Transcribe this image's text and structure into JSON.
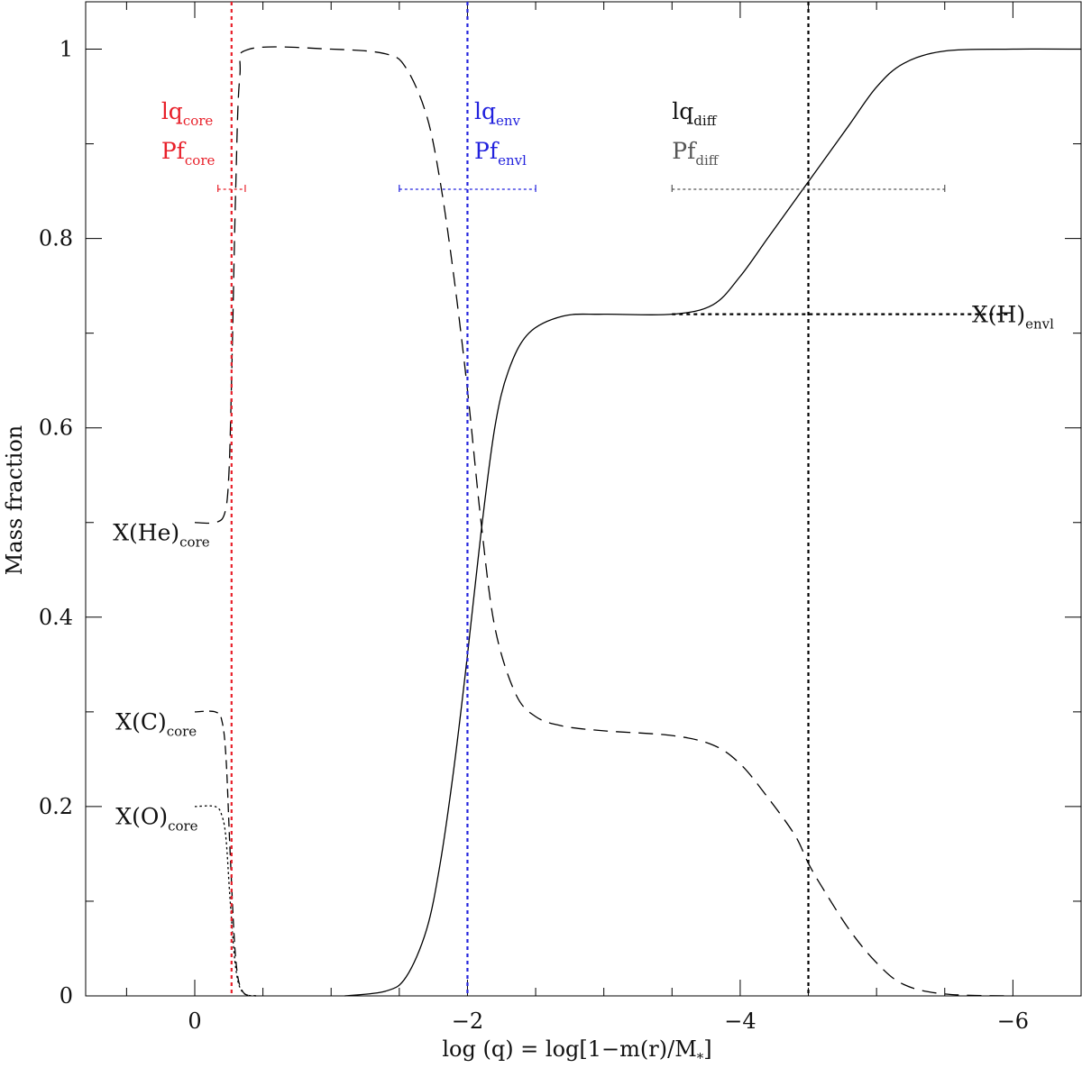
{
  "chart_data": {
    "type": "line",
    "title": "",
    "xlabel": "log (q) = log[1−m(r)/M",
    "xlabel_sub": "*",
    "xlabel_close": "]",
    "ylabel": "Mass fraction",
    "xlim": [
      0.8,
      -6.5
    ],
    "ylim": [
      0,
      1.05
    ],
    "x_reversed": true,
    "grid": false,
    "x_ticks": [
      {
        "value": 0,
        "label": "0"
      },
      {
        "value": -2,
        "label": "−2"
      },
      {
        "value": -4,
        "label": "−4"
      },
      {
        "value": -6,
        "label": "−6"
      }
    ],
    "y_ticks": [
      {
        "value": 0,
        "label": "0"
      },
      {
        "value": 0.2,
        "label": "0.2"
      },
      {
        "value": 0.4,
        "label": "0.4"
      },
      {
        "value": 0.6,
        "label": "0.6"
      },
      {
        "value": 0.8,
        "label": "0.8"
      },
      {
        "value": 1,
        "label": "1"
      }
    ],
    "series": [
      {
        "id": "hydrogen",
        "style": "solid",
        "color": "#000000",
        "x": [
          -1.1,
          -1.4,
          -1.55,
          -1.7,
          -1.8,
          -1.9,
          -2.0,
          -2.1,
          -2.2,
          -2.3,
          -2.45,
          -2.7,
          -3.0,
          -3.5,
          -3.8,
          -4.0,
          -4.2,
          -4.4,
          -4.5,
          -4.6,
          -4.8,
          -5.0,
          -5.2,
          -5.5,
          -6.0,
          -6.5
        ],
        "y": [
          0.0,
          0.005,
          0.02,
          0.07,
          0.14,
          0.24,
          0.36,
          0.49,
          0.6,
          0.66,
          0.7,
          0.718,
          0.72,
          0.72,
          0.73,
          0.76,
          0.8,
          0.84,
          0.86,
          0.88,
          0.92,
          0.96,
          0.985,
          0.998,
          1.0,
          1.0
        ]
      },
      {
        "id": "helium",
        "style": "dashed",
        "color": "#000000",
        "x": [
          0.0,
          -0.15,
          -0.22,
          -0.25,
          -0.27,
          -0.3,
          -0.33,
          -0.4,
          -1.0,
          -1.4,
          -1.55,
          -1.7,
          -1.8,
          -1.9,
          -2.0,
          -2.1,
          -2.2,
          -2.35,
          -2.5,
          -2.7,
          -3.0,
          -3.5,
          -3.8,
          -4.0,
          -4.2,
          -4.4,
          -4.5,
          -4.6,
          -4.8,
          -5.0,
          -5.2,
          -5.5,
          -6.0
        ],
        "y": [
          0.5,
          0.5,
          0.51,
          0.55,
          0.65,
          0.85,
          0.97,
          1.0,
          1.0,
          0.995,
          0.98,
          0.93,
          0.86,
          0.76,
          0.64,
          0.5,
          0.39,
          0.32,
          0.295,
          0.285,
          0.28,
          0.275,
          0.265,
          0.245,
          0.21,
          0.17,
          0.14,
          0.115,
          0.07,
          0.035,
          0.012,
          0.002,
          0.0
        ]
      },
      {
        "id": "carbon",
        "style": "longdash",
        "color": "#000000",
        "x": [
          0.0,
          -0.15,
          -0.2,
          -0.23,
          -0.26,
          -0.3,
          -0.35,
          -0.45
        ],
        "y": [
          0.3,
          0.3,
          0.29,
          0.25,
          0.15,
          0.04,
          0.005,
          0.0
        ]
      },
      {
        "id": "oxygen",
        "style": "dotted",
        "color": "#000000",
        "x": [
          0.0,
          -0.15,
          -0.2,
          -0.23,
          -0.26,
          -0.3,
          -0.35,
          -0.45
        ],
        "y": [
          0.2,
          0.2,
          0.19,
          0.165,
          0.1,
          0.03,
          0.004,
          0.0
        ]
      }
    ],
    "vertical_lines": [
      {
        "id": "lq-core",
        "x": -0.27,
        "color": "#e8202a"
      },
      {
        "id": "lq-env",
        "x": -2.0,
        "color": "#2222dd"
      },
      {
        "id": "lq-diff",
        "x": -4.5,
        "color": "#000000"
      }
    ],
    "range_bars": [
      {
        "id": "pf-core",
        "x1": -0.17,
        "x2": -0.37,
        "y": 0.852,
        "color": "#e8202a"
      },
      {
        "id": "pf-env",
        "x1": -1.5,
        "x2": -2.5,
        "y": 0.852,
        "color": "#2222dd"
      },
      {
        "id": "pf-diff",
        "x1": -3.5,
        "x2": -5.5,
        "y": 0.852,
        "color": "#555555"
      }
    ],
    "horizontal_lines": [
      {
        "id": "x-h-envl",
        "x1": -3.5,
        "x2": -6.0,
        "y": 0.72,
        "color": "#000000"
      }
    ],
    "annotations": [
      {
        "id": "lq-core",
        "main": "lq",
        "sub": "core",
        "color": "#e8202a",
        "x": -0.27,
        "y": 0.935
      },
      {
        "id": "pf-core",
        "main": "Pf",
        "sub": "core",
        "color": "#e8202a",
        "x": -0.27,
        "y": 0.893
      },
      {
        "id": "lq-env",
        "main": "lq",
        "sub": "env",
        "color": "#2222dd",
        "x": -2.05,
        "y": 0.935
      },
      {
        "id": "pf-envl",
        "main": "Pf",
        "sub": "envl",
        "color": "#2222dd",
        "x": -2.05,
        "y": 0.893
      },
      {
        "id": "lq-diff",
        "main": "lq",
        "sub": "diff",
        "color": "#111111",
        "x": -3.5,
        "y": 0.935
      },
      {
        "id": "pf-diff",
        "main": "Pf",
        "sub": "diff",
        "color": "#555555",
        "x": -3.5,
        "y": 0.893
      },
      {
        "id": "x-h-envl",
        "main": "X(H)",
        "sub": "envl",
        "color": "#111111",
        "x": -5.7,
        "y": 0.72
      },
      {
        "id": "x-he-core",
        "main": "X(He)",
        "sub": "core",
        "color": "#111111",
        "x": 0.6,
        "y": 0.49
      },
      {
        "id": "x-c-core",
        "main": "X(C)",
        "sub": "core",
        "color": "#111111",
        "x": 0.58,
        "y": 0.29
      },
      {
        "id": "x-o-core",
        "main": "X(O)",
        "sub": "core",
        "color": "#111111",
        "x": 0.58,
        "y": 0.19
      }
    ]
  }
}
